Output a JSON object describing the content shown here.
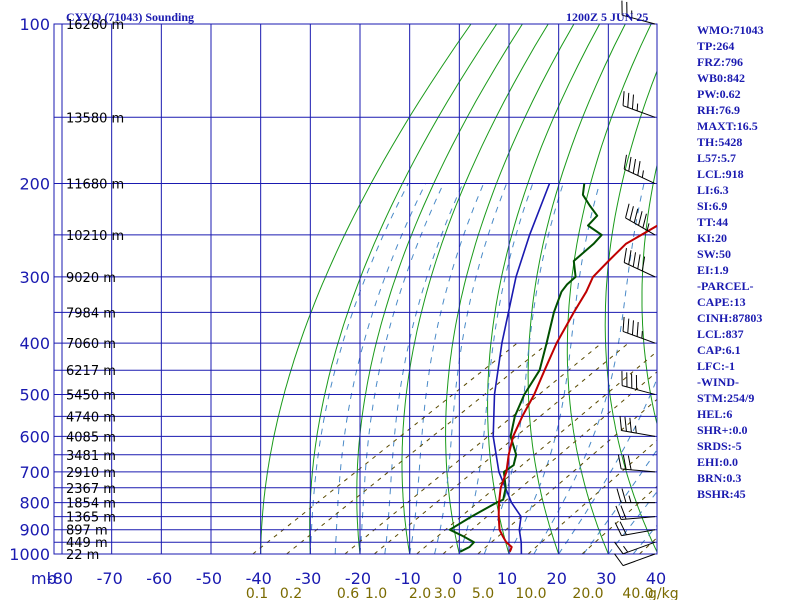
{
  "header": {
    "title": "CYVQ (71043) Sounding",
    "datetime": "1200Z  5 JUN 25"
  },
  "indices": [
    "WMO:71043",
    "TP:264",
    "FRZ:796",
    "WB0:842",
    "PW:0.62",
    "RH:76.9",
    "MAXT:16.5",
    "TH:5428",
    "L57:5.7",
    "LCL:918",
    "LI:6.3",
    "SI:6.9",
    "TT:44",
    "KI:20",
    "SW:50",
    "EI:1.9",
    "-PARCEL-",
    "CAPE:13",
    "CINH:87803",
    "LCL:837",
    "CAP:6.1",
    "LFC:-1",
    "-WIND-",
    "STM:254/9",
    "HEL:6",
    "SHR+:0.0",
    "SRDS:-5",
    "EHI:0.0",
    "BRN:0.3",
    "BSHR:45"
  ],
  "chart_data": {
    "type": "line",
    "skew_t": true,
    "y_scale": "log",
    "ylim": [
      1000,
      100
    ],
    "xlim": [
      -80,
      40
    ],
    "x_unit_label": "mb",
    "y_ticks": [
      100,
      200,
      300,
      400,
      500,
      600,
      700,
      800,
      900,
      1000
    ],
    "x_ticks": [
      -80,
      -70,
      -60,
      -50,
      -40,
      -30,
      -20,
      -10,
      0,
      10,
      20,
      30,
      40
    ],
    "mixing_ratio_unit": "g/kg",
    "mixing_ratio_labels": [
      "0.1",
      "0.2",
      "0.6",
      "1.0",
      "2.0",
      "3.0",
      "5.0",
      "10.0",
      "20.0",
      "40.0"
    ],
    "height_labels": [
      {
        "p": 100,
        "text": "16260 m"
      },
      {
        "p": 150,
        "text": "13580 m"
      },
      {
        "p": 200,
        "text": "11680 m"
      },
      {
        "p": 250,
        "text": "10210 m"
      },
      {
        "p": 300,
        "text": "9020 m"
      },
      {
        "p": 350,
        "text": "7984 m"
      },
      {
        "p": 400,
        "text": "7060 m"
      },
      {
        "p": 450,
        "text": "6217 m"
      },
      {
        "p": 500,
        "text": "5450 m"
      },
      {
        "p": 550,
        "text": "4740 m"
      },
      {
        "p": 600,
        "text": "4085 m"
      },
      {
        "p": 650,
        "text": "3481 m"
      },
      {
        "p": 700,
        "text": "2910 m"
      },
      {
        "p": 750,
        "text": "2367 m"
      },
      {
        "p": 800,
        "text": "1854 m"
      },
      {
        "p": 850,
        "text": "1365 m"
      },
      {
        "p": 900,
        "text": "897 m"
      },
      {
        "p": 950,
        "text": "449 m"
      },
      {
        "p": 1000,
        "text": "22 m"
      }
    ],
    "temperature": [
      [
        990,
        9.5
      ],
      [
        970,
        8.5
      ],
      [
        950,
        6.0
      ],
      [
        925,
        3.5
      ],
      [
        900,
        1.0
      ],
      [
        850,
        -3.0
      ],
      [
        800,
        -7.0
      ],
      [
        750,
        -11.0
      ],
      [
        700,
        -14.5
      ],
      [
        650,
        -19.0
      ],
      [
        600,
        -23.5
      ],
      [
        550,
        -27.5
      ],
      [
        500,
        -31.5
      ],
      [
        450,
        -36.5
      ],
      [
        400,
        -42.0
      ],
      [
        350,
        -47.5
      ],
      [
        320,
        -51.0
      ],
      [
        300,
        -54.0
      ],
      [
        280,
        -55.5
      ],
      [
        260,
        -57.0
      ],
      [
        240,
        -56.0
      ],
      [
        230,
        -54.5
      ],
      [
        220,
        -55.0
      ],
      [
        200,
        -55.0
      ],
      [
        180,
        -54.5
      ],
      [
        160,
        -53.0
      ],
      [
        150,
        -54.0
      ],
      [
        140,
        -53.5
      ],
      [
        130,
        -53.0
      ],
      [
        120,
        -53.0
      ],
      [
        110,
        -54.0
      ],
      [
        100,
        -54.5
      ]
    ],
    "dewpoint": [
      [
        990,
        -0.5
      ],
      [
        970,
        0.0
      ],
      [
        950,
        -0.5
      ],
      [
        925,
        -4.5
      ],
      [
        900,
        -9.0
      ],
      [
        850,
        -8.5
      ],
      [
        800,
        -7.5
      ],
      [
        790,
        -7.0
      ],
      [
        750,
        -10.0
      ],
      [
        700,
        -15.0
      ],
      [
        680,
        -15.0
      ],
      [
        650,
        -17.5
      ],
      [
        600,
        -24.0
      ],
      [
        550,
        -29.0
      ],
      [
        500,
        -33.5
      ],
      [
        450,
        -37.5
      ],
      [
        400,
        -44.0
      ],
      [
        350,
        -51.5
      ],
      [
        320,
        -56.0
      ],
      [
        310,
        -57.0
      ],
      [
        300,
        -57.5
      ],
      [
        280,
        -62.5
      ],
      [
        260,
        -63.5
      ],
      [
        250,
        -64.5
      ],
      [
        240,
        -70.0
      ],
      [
        230,
        -71.0
      ],
      [
        220,
        -75.5
      ],
      [
        210,
        -80.0
      ],
      [
        200,
        -83.0
      ]
    ],
    "parcel": [
      [
        1000,
        12.5
      ],
      [
        950,
        9.0
      ],
      [
        900,
        5.0
      ],
      [
        850,
        1.5
      ],
      [
        800,
        -4.5
      ],
      [
        700,
        -16.0
      ],
      [
        600,
        -27.5
      ],
      [
        500,
        -39.5
      ],
      [
        400,
        -53.0
      ],
      [
        300,
        -69.5
      ],
      [
        250,
        -79.0
      ],
      [
        200,
        -90.0
      ]
    ],
    "wind_barbs": [
      {
        "p": 1000,
        "dir": 250,
        "spd": 10
      },
      {
        "p": 950,
        "dir": 250,
        "spd": 15
      },
      {
        "p": 900,
        "dir": 260,
        "spd": 20
      },
      {
        "p": 850,
        "dir": 265,
        "spd": 20
      },
      {
        "p": 800,
        "dir": 270,
        "spd": 25
      },
      {
        "p": 700,
        "dir": 275,
        "spd": 30
      },
      {
        "p": 600,
        "dir": 280,
        "spd": 35
      },
      {
        "p": 500,
        "dir": 285,
        "spd": 40
      },
      {
        "p": 400,
        "dir": 290,
        "spd": 45
      },
      {
        "p": 300,
        "dir": 295,
        "spd": 50
      },
      {
        "p": 250,
        "dir": 300,
        "spd": 55
      },
      {
        "p": 200,
        "dir": 295,
        "spd": 45
      },
      {
        "p": 150,
        "dir": 290,
        "spd": 35
      },
      {
        "p": 100,
        "dir": 285,
        "spd": 25
      }
    ],
    "colors": {
      "grid": "#1a1ab0",
      "dry_adiabat": "#1a9a1a",
      "moist_adiabat": "#4a8ac8",
      "mixing_ratio": "#5a4a00",
      "temperature": "#c00000",
      "dewpoint": "#005000",
      "parcel": "#1a1ab0",
      "barbs": "#000000"
    }
  }
}
